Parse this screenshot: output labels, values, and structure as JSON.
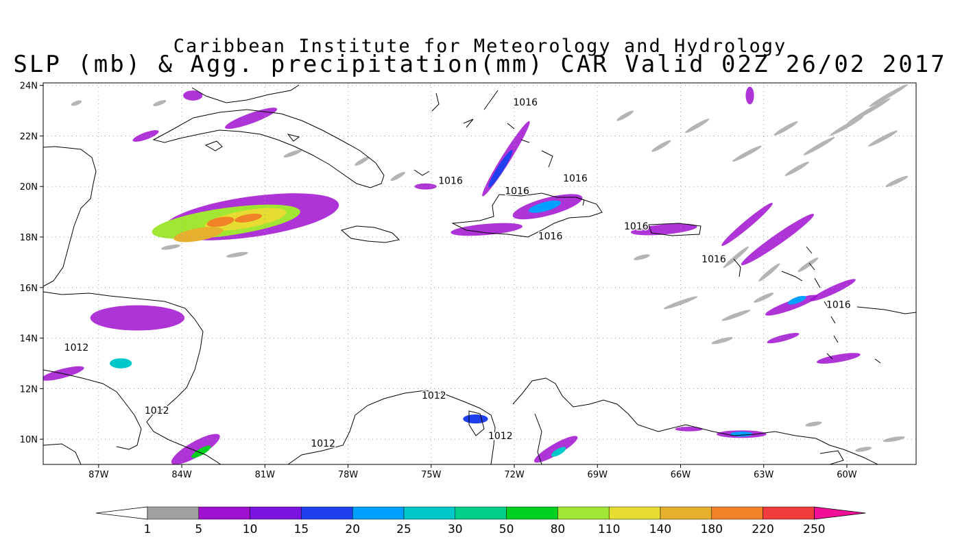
{
  "title_line1": "Caribbean Institute for Meteorology and Hydrology",
  "title_line2": "SLP (mb) & Agg. precipitation(mm) CAR Valid 02Z 26/02 2017",
  "map": {
    "lon_range": [
      -89.0,
      -57.5
    ],
    "lat_range": [
      9.0,
      24.1
    ],
    "x_ticks": [
      {
        "lon": -87,
        "label": "87W"
      },
      {
        "lon": -84,
        "label": "84W"
      },
      {
        "lon": -81,
        "label": "81W"
      },
      {
        "lon": -78,
        "label": "78W"
      },
      {
        "lon": -75,
        "label": "75W"
      },
      {
        "lon": -72,
        "label": "72W"
      },
      {
        "lon": -69,
        "label": "69W"
      },
      {
        "lon": -66,
        "label": "66W"
      },
      {
        "lon": -63,
        "label": "63W"
      },
      {
        "lon": -60,
        "label": "60W"
      }
    ],
    "y_ticks": [
      {
        "lat": 10,
        "label": "10N"
      },
      {
        "lat": 12,
        "label": "12N"
      },
      {
        "lat": 14,
        "label": "14N"
      },
      {
        "lat": 16,
        "label": "16N"
      },
      {
        "lat": 18,
        "label": "18N"
      },
      {
        "lat": 20,
        "label": "20N"
      },
      {
        "lat": 22,
        "label": "22N"
      },
      {
        "lat": 24,
        "label": "24N"
      }
    ],
    "grid": "dotted",
    "isobar_labels": [
      {
        "text": "1016",
        "lon": -71.6,
        "lat": 23.2
      },
      {
        "text": "1016",
        "lon": -74.3,
        "lat": 20.1
      },
      {
        "text": "1016",
        "lon": -71.9,
        "lat": 19.7
      },
      {
        "text": "1016",
        "lon": -69.8,
        "lat": 20.2
      },
      {
        "text": "1016",
        "lon": -67.6,
        "lat": 18.3
      },
      {
        "text": "1016",
        "lon": -70.7,
        "lat": 17.9
      },
      {
        "text": "1016",
        "lon": -64.8,
        "lat": 17.0
      },
      {
        "text": "1016",
        "lon": -60.3,
        "lat": 15.2
      },
      {
        "text": "1012",
        "lon": -87.8,
        "lat": 13.5
      },
      {
        "text": "1012",
        "lon": -84.9,
        "lat": 11.0
      },
      {
        "text": "1012",
        "lon": -74.9,
        "lat": 11.6
      },
      {
        "text": "1012",
        "lon": -72.5,
        "lat": 10.0
      },
      {
        "text": "1012",
        "lon": -78.9,
        "lat": 9.7
      }
    ],
    "precip_areas": [
      {
        "lon": -82.4,
        "lat": 18.6,
        "rx": 2.7,
        "ry": 0.55,
        "angle": -8,
        "level": 9
      },
      {
        "lon": -81.7,
        "lat": 18.7,
        "rx": 1.5,
        "ry": 0.35,
        "angle": -10,
        "level": 10
      },
      {
        "lon": -83.4,
        "lat": 18.1,
        "rx": 0.9,
        "ry": 0.25,
        "angle": -10,
        "level": 11
      },
      {
        "lon": -82.6,
        "lat": 18.6,
        "rx": 0.5,
        "ry": 0.18,
        "angle": -10,
        "level": 12
      },
      {
        "lon": -81.6,
        "lat": 18.75,
        "rx": 0.5,
        "ry": 0.15,
        "angle": -10,
        "level": 12
      },
      {
        "lon": -81.5,
        "lat": 18.8,
        "rx": 3.2,
        "ry": 0.8,
        "angle": -8,
        "level": 2
      },
      {
        "lon": -72.3,
        "lat": 21.1,
        "rx": 1.6,
        "ry": 0.18,
        "angle": -58,
        "level": 2
      },
      {
        "lon": -72.5,
        "lat": 20.7,
        "rx": 0.8,
        "ry": 0.13,
        "angle": -58,
        "level": 4
      },
      {
        "lon": -70.8,
        "lat": 19.2,
        "rx": 1.3,
        "ry": 0.35,
        "angle": -15,
        "level": 2
      },
      {
        "lon": -70.9,
        "lat": 19.2,
        "rx": 0.6,
        "ry": 0.18,
        "angle": -15,
        "level": 5
      },
      {
        "lon": -73.0,
        "lat": 18.3,
        "rx": 1.3,
        "ry": 0.22,
        "angle": -5,
        "level": 2
      },
      {
        "lon": -81.5,
        "lat": 22.7,
        "rx": 1.0,
        "ry": 0.2,
        "angle": -20,
        "level": 2
      },
      {
        "lon": -85.3,
        "lat": 22.0,
        "rx": 0.5,
        "ry": 0.14,
        "angle": -20,
        "level": 2
      },
      {
        "lon": -85.6,
        "lat": 14.8,
        "rx": 1.7,
        "ry": 0.5,
        "angle": 0,
        "level": 2
      },
      {
        "lon": -86.2,
        "lat": 13.0,
        "rx": 0.4,
        "ry": 0.2,
        "angle": 0,
        "level": 6
      },
      {
        "lon": -88.3,
        "lat": 12.6,
        "rx": 0.8,
        "ry": 0.18,
        "angle": -15,
        "level": 2
      },
      {
        "lon": -83.5,
        "lat": 9.6,
        "rx": 1.0,
        "ry": 0.3,
        "angle": -30,
        "level": 2
      },
      {
        "lon": -83.3,
        "lat": 9.5,
        "rx": 0.4,
        "ry": 0.13,
        "angle": -30,
        "level": 8
      },
      {
        "lon": -73.4,
        "lat": 10.8,
        "rx": 0.45,
        "ry": 0.18,
        "angle": 0,
        "level": 4
      },
      {
        "lon": -70.5,
        "lat": 9.6,
        "rx": 0.9,
        "ry": 0.22,
        "angle": -30,
        "level": 2
      },
      {
        "lon": -70.4,
        "lat": 9.5,
        "rx": 0.3,
        "ry": 0.12,
        "angle": -30,
        "level": 6
      },
      {
        "lon": -63.8,
        "lat": 10.2,
        "rx": 0.9,
        "ry": 0.15,
        "angle": 0,
        "level": 2
      },
      {
        "lon": -63.8,
        "lat": 10.2,
        "rx": 0.4,
        "ry": 0.1,
        "angle": 0,
        "level": 5
      },
      {
        "lon": -65.7,
        "lat": 10.4,
        "rx": 0.5,
        "ry": 0.09,
        "angle": 0,
        "level": 2
      },
      {
        "lon": -66.6,
        "lat": 18.3,
        "rx": 1.2,
        "ry": 0.2,
        "angle": -5,
        "level": 2
      },
      {
        "lon": -62.5,
        "lat": 17.9,
        "rx": 1.6,
        "ry": 0.2,
        "angle": -35,
        "level": 2
      },
      {
        "lon": -63.6,
        "lat": 18.5,
        "rx": 1.2,
        "ry": 0.15,
        "angle": -40,
        "level": 2
      },
      {
        "lon": -62.0,
        "lat": 15.3,
        "rx": 1.0,
        "ry": 0.18,
        "angle": -20,
        "level": 2
      },
      {
        "lon": -61.8,
        "lat": 15.5,
        "rx": 0.35,
        "ry": 0.12,
        "angle": -20,
        "level": 5
      },
      {
        "lon": -60.5,
        "lat": 15.9,
        "rx": 0.9,
        "ry": 0.15,
        "angle": -25,
        "level": 2
      },
      {
        "lon": -62.3,
        "lat": 14.0,
        "rx": 0.6,
        "ry": 0.12,
        "angle": -15,
        "level": 2
      },
      {
        "lon": -60.3,
        "lat": 13.2,
        "rx": 0.8,
        "ry": 0.15,
        "angle": -10,
        "level": 2
      },
      {
        "lon": -63.5,
        "lat": 23.6,
        "rx": 0.15,
        "ry": 0.35,
        "angle": 0,
        "level": 2
      },
      {
        "lon": -83.6,
        "lat": 23.6,
        "rx": 0.35,
        "ry": 0.2,
        "angle": 0,
        "level": 2
      },
      {
        "lon": -75.2,
        "lat": 20.0,
        "rx": 0.4,
        "ry": 0.12,
        "angle": 0,
        "level": 2
      }
    ],
    "gray_streaks": [
      {
        "lon": -58.5,
        "lat": 23.6,
        "len": 1.6,
        "angle": -30
      },
      {
        "lon": -59.2,
        "lat": 23.0,
        "len": 1.8,
        "angle": -30
      },
      {
        "lon": -60.0,
        "lat": 22.4,
        "len": 1.4,
        "angle": -30
      },
      {
        "lon": -58.7,
        "lat": 21.9,
        "len": 1.2,
        "angle": -28
      },
      {
        "lon": -61.0,
        "lat": 21.6,
        "len": 1.3,
        "angle": -30
      },
      {
        "lon": -62.2,
        "lat": 22.3,
        "len": 1.0,
        "angle": -30
      },
      {
        "lon": -63.6,
        "lat": 21.3,
        "len": 1.2,
        "angle": -28
      },
      {
        "lon": -61.8,
        "lat": 20.7,
        "len": 1.0,
        "angle": -30
      },
      {
        "lon": -58.2,
        "lat": 20.2,
        "len": 0.9,
        "angle": -25
      },
      {
        "lon": -65.4,
        "lat": 22.4,
        "len": 1.0,
        "angle": -30
      },
      {
        "lon": -66.7,
        "lat": 21.6,
        "len": 0.8,
        "angle": -30
      },
      {
        "lon": -68.0,
        "lat": 22.8,
        "len": 0.7,
        "angle": -30
      },
      {
        "lon": -64.0,
        "lat": 17.2,
        "len": 1.2,
        "angle": -40
      },
      {
        "lon": -62.8,
        "lat": 16.6,
        "len": 1.0,
        "angle": -40
      },
      {
        "lon": -61.4,
        "lat": 16.9,
        "len": 0.9,
        "angle": -35
      },
      {
        "lon": -66.0,
        "lat": 15.4,
        "len": 1.3,
        "angle": -20
      },
      {
        "lon": -64.0,
        "lat": 14.9,
        "len": 1.1,
        "angle": -20
      },
      {
        "lon": -63.0,
        "lat": 15.6,
        "len": 0.8,
        "angle": -25
      },
      {
        "lon": -64.5,
        "lat": 13.9,
        "len": 0.8,
        "angle": -15
      },
      {
        "lon": -82.0,
        "lat": 17.3,
        "len": 0.8,
        "angle": -10
      },
      {
        "lon": -84.4,
        "lat": 17.6,
        "len": 0.7,
        "angle": -10
      },
      {
        "lon": -80.0,
        "lat": 21.3,
        "len": 0.7,
        "angle": -20
      },
      {
        "lon": -77.5,
        "lat": 21.0,
        "len": 0.6,
        "angle": -30
      },
      {
        "lon": -76.2,
        "lat": 20.4,
        "len": 0.6,
        "angle": -30
      },
      {
        "lon": -87.8,
        "lat": 23.3,
        "len": 0.4,
        "angle": -20
      },
      {
        "lon": -84.8,
        "lat": 23.3,
        "len": 0.5,
        "angle": -20
      },
      {
        "lon": -67.4,
        "lat": 17.2,
        "len": 0.6,
        "angle": -15
      },
      {
        "lon": -58.3,
        "lat": 10.0,
        "len": 0.8,
        "angle": -10
      },
      {
        "lon": -59.4,
        "lat": 9.6,
        "len": 0.6,
        "angle": -10
      },
      {
        "lon": -61.2,
        "lat": 10.6,
        "len": 0.6,
        "angle": -10
      }
    ]
  },
  "colorbar": {
    "colors": [
      "#ffffff",
      "#a0a0a0",
      "#a010d0",
      "#7a12e0",
      "#2040f0",
      "#00a0ff",
      "#00c8c8",
      "#00d088",
      "#00d020",
      "#a0e632",
      "#e6dc32",
      "#e6af2d",
      "#f08228",
      "#f03c3c",
      "#f00f96"
    ],
    "labels": [
      "1",
      "5",
      "10",
      "15",
      "20",
      "25",
      "30",
      "50",
      "80",
      "110",
      "140",
      "180",
      "220",
      "250"
    ]
  }
}
